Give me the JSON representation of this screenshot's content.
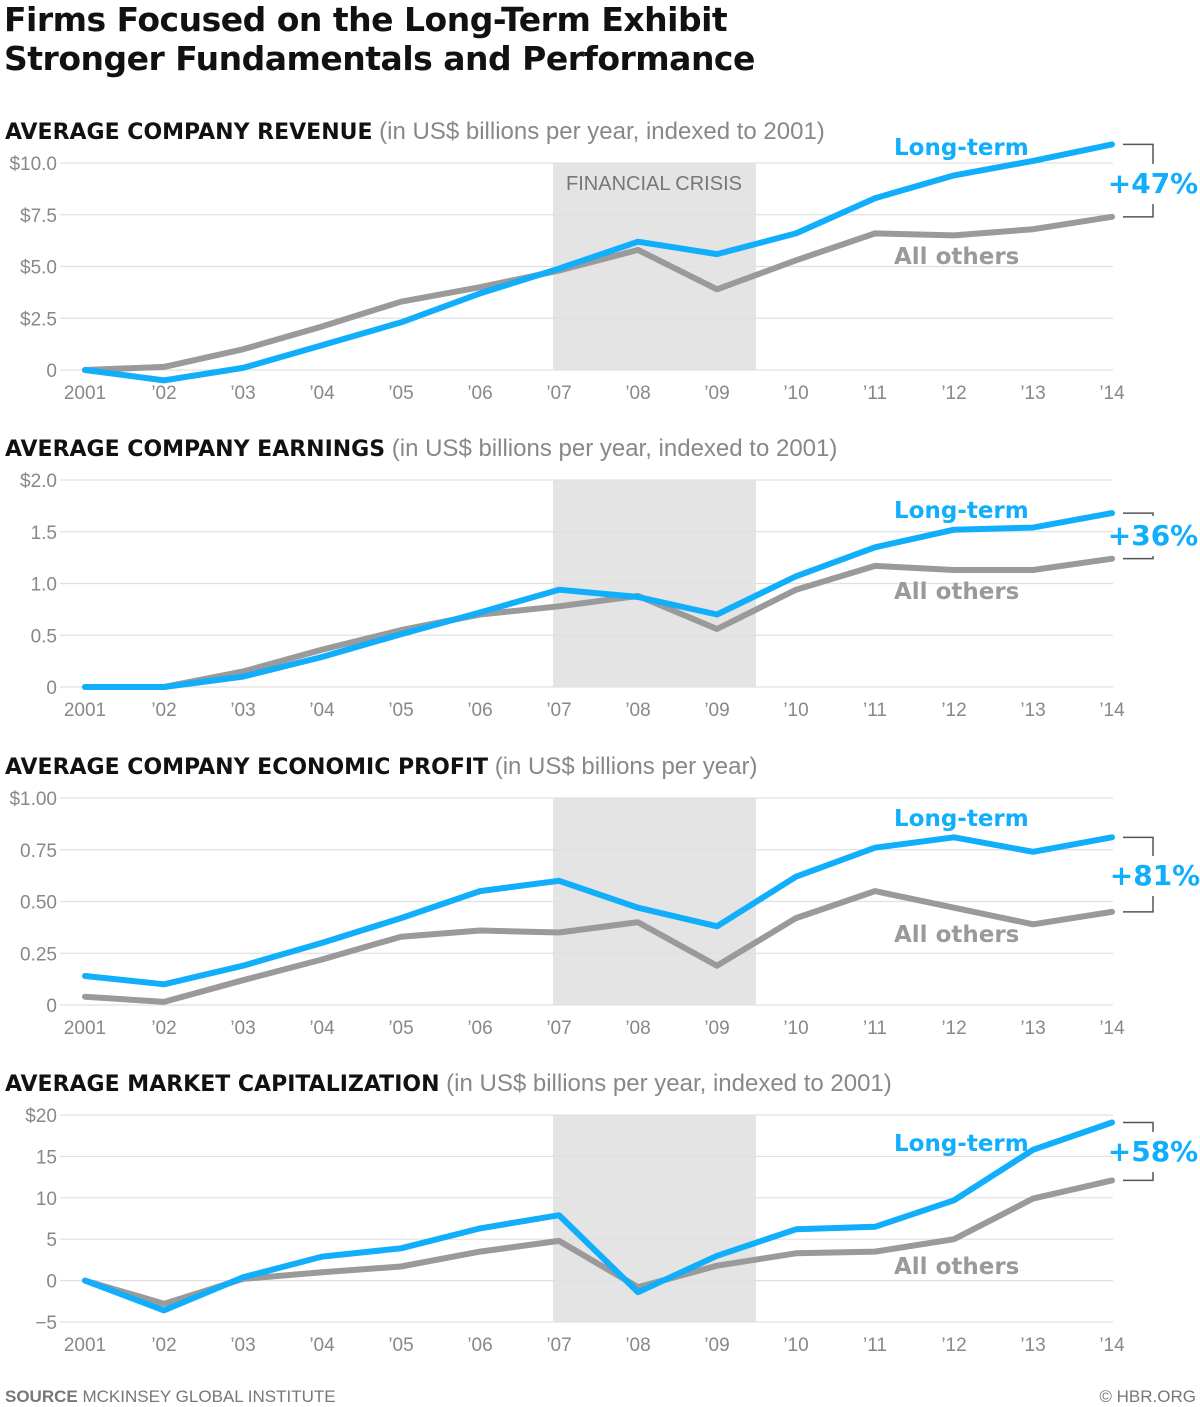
{
  "title_line1": "Firms Focused on the Long-Term Exhibit",
  "title_line2": "Stronger Fundamentals and Performance",
  "source_label": "SOURCE",
  "source_text": "MCKINSEY GLOBAL INSTITUTE",
  "copyright": "© HBR.ORG",
  "colors": {
    "long_term": "#10aefb",
    "all_others": "#9a9a9a",
    "crisis": "#e4e4e4",
    "grid": "#e0e0e0",
    "text": "#777777"
  },
  "chart_data": [
    {
      "type": "line",
      "title": "AVERAGE COMPANY REVENUE",
      "subtitle": "(in US$ billions per year, indexed to 2001)",
      "x_labels": [
        "2001",
        "’02",
        "’03",
        "’04",
        "’05",
        "’06",
        "’07",
        "’08",
        "’09",
        "’10",
        "’11",
        "’12",
        "’13",
        "’14"
      ],
      "ylim": [
        0,
        10
      ],
      "y_ticks": [
        0,
        2.5,
        5,
        7.5,
        10
      ],
      "y_tick_labels": [
        "0",
        "$2.5",
        "$5.0",
        "$7.5",
        "$10.0"
      ],
      "shaded_region": {
        "label": "FINANCIAL CRISIS",
        "from": "’07",
        "to": "mid ’09–’10"
      },
      "series": [
        {
          "name": "Long-term",
          "values": [
            0,
            -0.5,
            0.1,
            1.2,
            2.3,
            3.7,
            4.9,
            6.2,
            5.6,
            6.6,
            8.3,
            9.4,
            10.1,
            10.9
          ]
        },
        {
          "name": "All others",
          "values": [
            0,
            0.15,
            1.0,
            2.1,
            3.3,
            4.0,
            4.8,
            5.8,
            3.9,
            5.3,
            6.6,
            6.5,
            6.8,
            7.4
          ]
        }
      ],
      "difference_label": "+47%"
    },
    {
      "type": "line",
      "title": "AVERAGE COMPANY EARNINGS",
      "subtitle": "(in US$ billions per year, indexed to 2001)",
      "x_labels": [
        "2001",
        "’02",
        "’03",
        "’04",
        "’05",
        "’06",
        "’07",
        "’08",
        "’09",
        "’10",
        "’11",
        "’12",
        "’13",
        "’14"
      ],
      "ylim": [
        0,
        2
      ],
      "y_ticks": [
        0,
        0.5,
        1,
        1.5,
        2
      ],
      "y_tick_labels": [
        "0",
        "0.5",
        "1.0",
        "1.5",
        "$2.0"
      ],
      "shaded_region": {
        "label": "",
        "from": "’07",
        "to": "mid ’09–’10"
      },
      "series": [
        {
          "name": "Long-term",
          "values": [
            0,
            0,
            0.1,
            0.29,
            0.51,
            0.72,
            0.94,
            0.87,
            0.7,
            1.07,
            1.35,
            1.52,
            1.54,
            1.68
          ]
        },
        {
          "name": "All others",
          "values": [
            0,
            0,
            0.15,
            0.36,
            0.55,
            0.7,
            0.78,
            0.88,
            0.56,
            0.94,
            1.17,
            1.13,
            1.13,
            1.24
          ]
        }
      ],
      "difference_label": "+36%"
    },
    {
      "type": "line",
      "title": "AVERAGE COMPANY ECONOMIC PROFIT",
      "subtitle": "(in US$ billions per year)",
      "x_labels": [
        "2001",
        "’02",
        "’03",
        "’04",
        "’05",
        "’06",
        "’07",
        "’08",
        "’09",
        "’10",
        "’11",
        "’12",
        "’13",
        "’14"
      ],
      "ylim": [
        0,
        1
      ],
      "y_ticks": [
        0,
        0.25,
        0.5,
        0.75,
        1
      ],
      "y_tick_labels": [
        "0",
        "0.25",
        "0.50",
        "0.75",
        "$1.00"
      ],
      "shaded_region": {
        "label": "",
        "from": "’07",
        "to": "mid ’09–’10"
      },
      "series": [
        {
          "name": "Long-term",
          "values": [
            0.14,
            0.1,
            0.19,
            0.3,
            0.42,
            0.55,
            0.6,
            0.47,
            0.38,
            0.62,
            0.76,
            0.81,
            0.74,
            0.81
          ]
        },
        {
          "name": "All others",
          "values": [
            0.04,
            0.015,
            0.12,
            0.22,
            0.33,
            0.36,
            0.35,
            0.4,
            0.19,
            0.42,
            0.55,
            0.47,
            0.39,
            0.45
          ]
        }
      ],
      "difference_label": "+81%"
    },
    {
      "type": "line",
      "title": "AVERAGE MARKET CAPITALIZATION",
      "subtitle": "(in US$ billions per year, indexed to 2001)",
      "x_labels": [
        "2001",
        "’02",
        "’03",
        "’04",
        "’05",
        "’06",
        "’07",
        "’08",
        "’09",
        "’10",
        "’11",
        "’12",
        "’13",
        "’14"
      ],
      "ylim": [
        -5,
        20
      ],
      "y_ticks": [
        -5,
        0,
        5,
        10,
        15,
        20
      ],
      "y_tick_labels": [
        "−5",
        "0",
        "5",
        "10",
        "15",
        "$20"
      ],
      "shaded_region": {
        "label": "",
        "from": "’07",
        "to": "mid ’09–’10"
      },
      "series": [
        {
          "name": "Long-term",
          "values": [
            0,
            -3.6,
            0.4,
            2.9,
            3.9,
            6.3,
            7.9,
            -1.4,
            3.0,
            6.2,
            6.5,
            9.7,
            15.8,
            19.1
          ]
        },
        {
          "name": "All others",
          "values": [
            0,
            -2.8,
            0.2,
            1.0,
            1.7,
            3.5,
            4.8,
            -0.8,
            1.8,
            3.3,
            3.5,
            5.0,
            9.9,
            12.1
          ]
        }
      ],
      "difference_label": "+58%"
    }
  ]
}
